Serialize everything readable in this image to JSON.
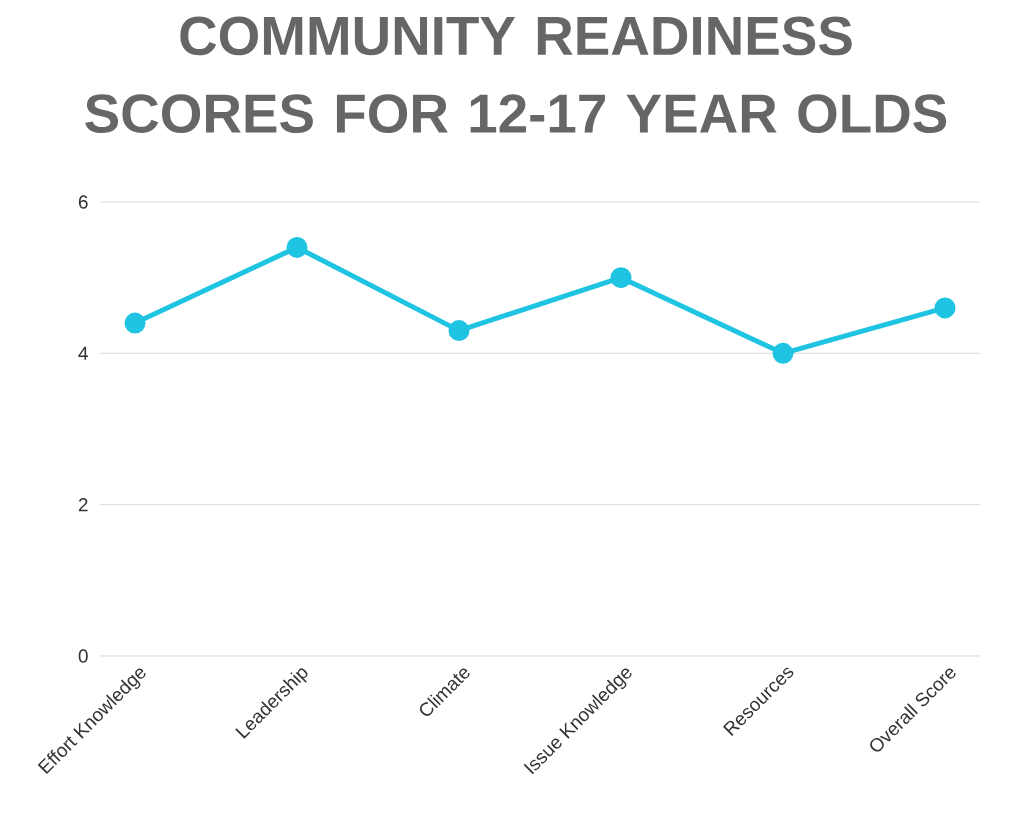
{
  "chart_data": {
    "type": "line",
    "title": "COMMUNITY READINESS SCORES FOR 12-17 YEAR OLDS",
    "categories": [
      "Effort Knowledge",
      "Leadership",
      "Climate",
      "Issue Knowledge",
      "Resources",
      "Overall Score"
    ],
    "values": [
      4.4,
      5.4,
      4.3,
      5.0,
      4.0,
      4.6
    ],
    "color": "#1ec4e2",
    "ylim": [
      0,
      6
    ],
    "yticks": [
      0,
      2,
      4,
      6
    ],
    "grid": "y",
    "marker": "circle",
    "line_style": "solid"
  }
}
